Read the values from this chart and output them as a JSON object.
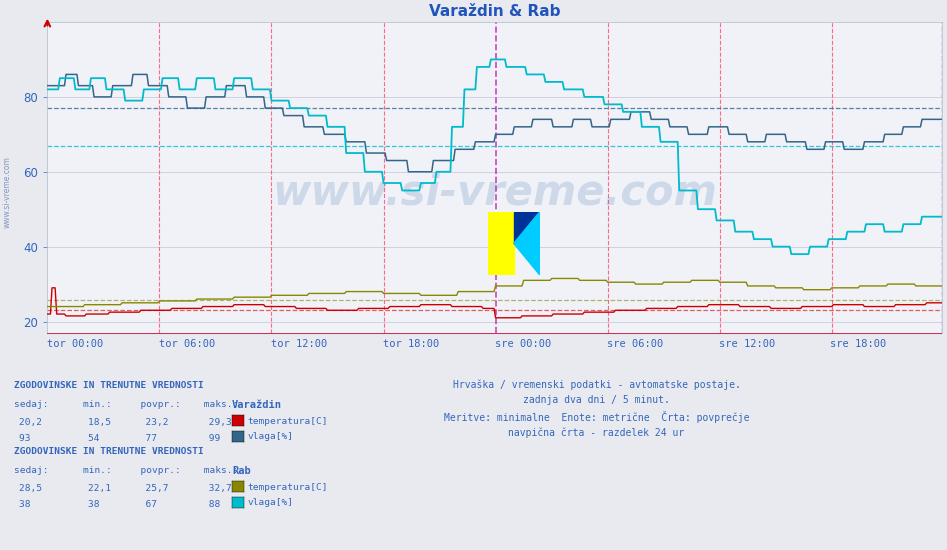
{
  "title": "Varaždin & Rab",
  "background_color": "#e8eaf0",
  "plot_bg_color": "#f0f2f8",
  "ylim": [
    17,
    100
  ],
  "yticks": [
    20,
    40,
    60,
    80
  ],
  "xlabel_ticks": [
    "tor 00:00",
    "tor 06:00",
    "tor 12:00",
    "tor 18:00",
    "sre 00:00",
    "sre 06:00",
    "sre 12:00",
    "sre 18:00"
  ],
  "n_points": 576,
  "title_color": "#2255bb",
  "title_fontsize": 11,
  "axis_color": "#3366bb",
  "grid_color": "#ccccdd",
  "vline_color_red": "#ff6688",
  "vline_color_magenta": "#cc44bb",
  "varazdin_temp_color": "#cc0000",
  "varazdin_hum_color": "#336688",
  "rab_temp_color": "#888800",
  "rab_hum_color": "#00bbcc",
  "watermark_color": "#3366aa",
  "footer_color": "#3366bb",
  "stats_color": "#3366bb",
  "varazdin_temp_sedaj": 20.2,
  "varazdin_temp_min": 18.5,
  "varazdin_temp_povpr": 23.2,
  "varazdin_temp_maks": 29.3,
  "varazdin_hum_sedaj": 93,
  "varazdin_hum_min": 54,
  "varazdin_hum_povpr": 77,
  "varazdin_hum_maks": 99,
  "rab_temp_sedaj": 28.5,
  "rab_temp_min": 22.1,
  "rab_temp_povpr": 25.7,
  "rab_temp_maks": 32.7,
  "rab_hum_sedaj": 38,
  "rab_hum_min": 38,
  "rab_hum_povpr": 67,
  "rab_hum_maks": 88
}
